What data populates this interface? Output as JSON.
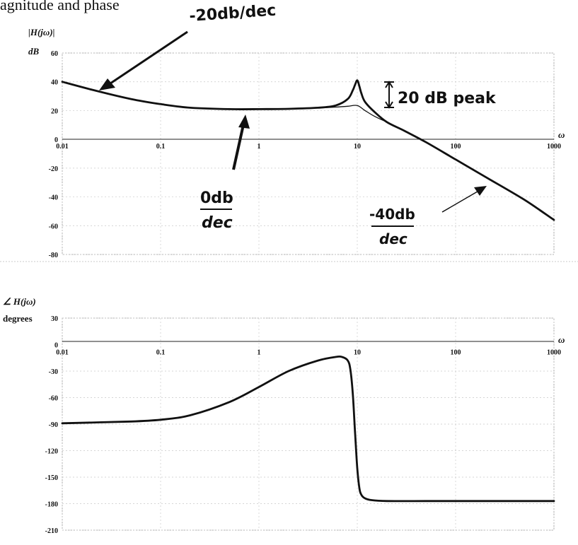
{
  "title": "agnitude and phase",
  "chart_data": [
    {
      "type": "line",
      "ylabel": "|H(jω)|",
      "yunit": "dB",
      "xlabel": "ω",
      "xscale": "log",
      "xlim": [
        0.01,
        1000
      ],
      "ylim": [
        -80,
        60
      ],
      "xticks": [
        "0.01",
        "0.1",
        "1",
        "10",
        "100",
        "1000"
      ],
      "yticks": [
        "60",
        "40",
        "20",
        "0",
        "-20",
        "-40",
        "-60",
        "-80"
      ],
      "grid": true,
      "series": [
        {
          "x": [
            0.01,
            0.02,
            0.05,
            0.1,
            0.2,
            0.5,
            1,
            2,
            4,
            6,
            8,
            9,
            9.5,
            10,
            10.5,
            11,
            12,
            15,
            20,
            30,
            50,
            100,
            200,
            500,
            1000
          ],
          "y": [
            40,
            34.5,
            28,
            24.5,
            22,
            21,
            21,
            21.2,
            22,
            23.5,
            28,
            34,
            38,
            41,
            37,
            32,
            26,
            19,
            12,
            6,
            -2,
            -14,
            -26,
            -42,
            -56
          ]
        },
        {
          "x": [
            0.01,
            0.02,
            0.05,
            0.1,
            0.2,
            0.5,
            1,
            2,
            4,
            6,
            8,
            10,
            12,
            15,
            20
          ],
          "y": [
            40,
            34.5,
            28,
            24.5,
            22,
            21,
            21,
            21.2,
            21.8,
            22.4,
            23,
            23.5,
            20,
            16,
            12
          ]
        }
      ],
      "annotations": [
        {
          "text": "-20db/dec"
        },
        {
          "text": "20 dB peak"
        },
        {
          "text": "0db",
          "sub": "dec"
        },
        {
          "text": "-40db",
          "sub": "dec"
        }
      ]
    },
    {
      "type": "line",
      "ylabel": "∠ H(jω)",
      "yunit": "degrees",
      "xlabel": "ω",
      "xscale": "log",
      "xlim": [
        0.01,
        1000
      ],
      "ylim": [
        -210,
        30
      ],
      "xticks": [
        "0.01",
        "0.1",
        "1",
        "10",
        "100",
        "1000"
      ],
      "yticks": [
        "30",
        "0",
        "-30",
        "-60",
        "-90",
        "-120",
        "-150",
        "-180",
        "-210"
      ],
      "grid": true,
      "series": [
        {
          "x": [
            0.01,
            0.05,
            0.1,
            0.2,
            0.5,
            1,
            2,
            4,
            6,
            7,
            8,
            8.5,
            9,
            9.5,
            10,
            10.5,
            11,
            12,
            14,
            20,
            50,
            100,
            1000
          ],
          "y": [
            -89,
            -87,
            -85,
            -80,
            -65,
            -48,
            -30,
            -18,
            -14,
            -14,
            -18,
            -28,
            -55,
            -100,
            -140,
            -162,
            -170,
            -174,
            -176,
            -177,
            -177,
            -177,
            -177
          ]
        }
      ]
    }
  ]
}
